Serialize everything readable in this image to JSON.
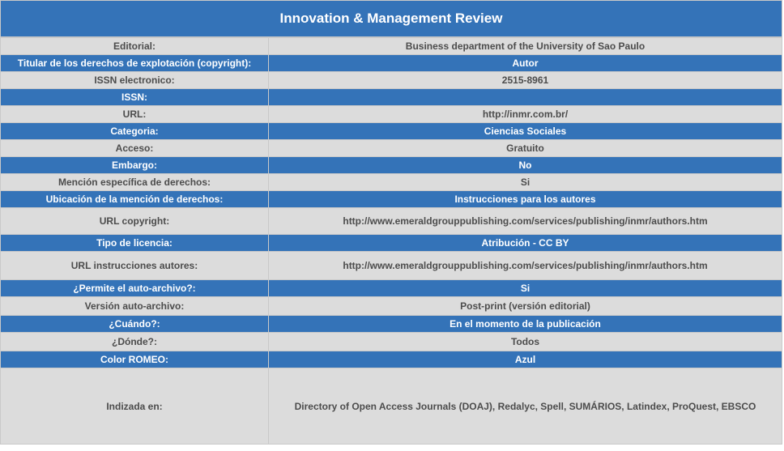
{
  "title": "Innovation & Management Review",
  "rows": [
    {
      "label": "Editorial:",
      "value": "Business department of the University of Sao Paulo"
    },
    {
      "label": "Titular de los derechos de explotación (copyright):",
      "value": "Autor"
    },
    {
      "label": "ISSN electronico:",
      "value": "2515-8961"
    },
    {
      "label": "ISSN:",
      "value": ""
    },
    {
      "label": "URL:",
      "value": "http://inmr.com.br/"
    },
    {
      "label": "Categoria:",
      "value": "Ciencias Sociales"
    },
    {
      "label": "Acceso:",
      "value": "Gratuito"
    },
    {
      "label": "Embargo:",
      "value": "No"
    },
    {
      "label": "Mención específica de derechos:",
      "value": "Si"
    },
    {
      "label": "Ubicación de la mención de derechos:",
      "value": "Instrucciones para los autores"
    },
    {
      "label": "URL copyright:",
      "value": "http://www.emeraldgrouppublishing.com/services/publishing/inmr/authors.htm"
    },
    {
      "label": "Tipo de licencia:",
      "value": "Atribución - CC BY"
    },
    {
      "label": "URL instrucciones autores:",
      "value": "http://www.emeraldgrouppublishing.com/services/publishing/inmr/authors.htm"
    },
    {
      "label": "¿Permite el auto-archivo?:",
      "value": "Si"
    },
    {
      "label": "Versión auto-archivo:",
      "value": "Post-print (versión editorial)"
    },
    {
      "label": "¿Cuándo?:",
      "value": "En el momento de la publicación"
    },
    {
      "label": "¿Dónde?:",
      "value": "Todos"
    },
    {
      "label": "Color ROMEO:",
      "value": "Azul"
    },
    {
      "label": "Indizada en:",
      "value": "Directory of Open Access Journals (DOAJ), Redalyc, Spell, SUMÁRIOS, Latindex, ProQuest, EBSCO"
    }
  ],
  "colors": {
    "blue": "#3473b8",
    "gray": "#dcdcdc"
  }
}
